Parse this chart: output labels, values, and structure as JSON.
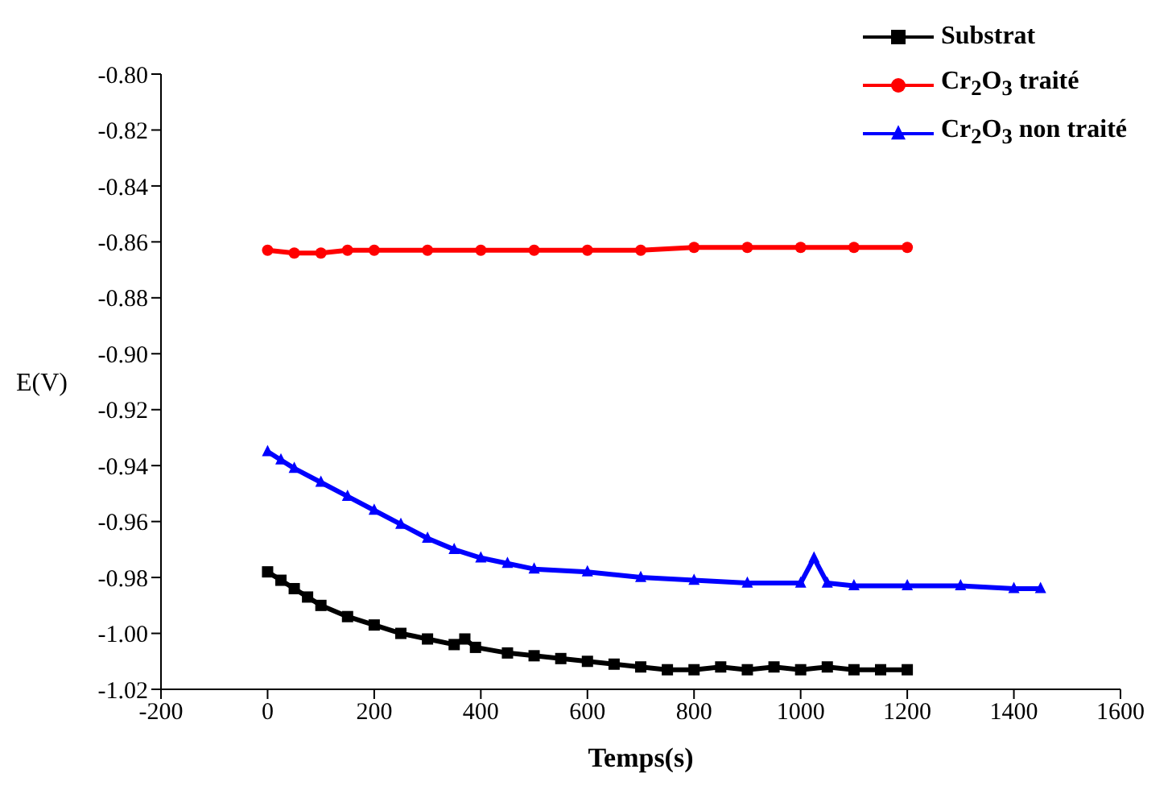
{
  "chart_data": {
    "type": "line",
    "xlabel": "Temps(s)",
    "ylabel": "E(V)",
    "xlim": [
      -200,
      1600
    ],
    "xticks": [
      -200,
      0,
      200,
      400,
      600,
      800,
      1000,
      1200,
      1400,
      1600
    ],
    "ylim": [
      -1.02,
      -0.8
    ],
    "yticks": [
      {
        "value": -1.02,
        "label": "-1.02"
      },
      {
        "value": -1.0,
        "label": "-1.00"
      },
      {
        "value": -0.98,
        "label": "-0.98"
      },
      {
        "value": -0.96,
        "label": "-0.96"
      },
      {
        "value": -0.94,
        "label": "-0.94"
      },
      {
        "value": -0.92,
        "label": "-0.92"
      },
      {
        "value": -0.9,
        "label": "-0.90"
      },
      {
        "value": -0.88,
        "label": "-0.88"
      },
      {
        "value": -0.86,
        "label": "-0.86"
      },
      {
        "value": -0.84,
        "label": "-0.84"
      },
      {
        "value": -0.82,
        "label": "-0.82"
      },
      {
        "value": -0.8,
        "label": "-0.80"
      }
    ],
    "grid": false,
    "legend": "top right",
    "series": [
      {
        "name": "Substrat",
        "color": "#000000",
        "marker": "square",
        "x": [
          0,
          25,
          50,
          75,
          100,
          150,
          200,
          250,
          300,
          350,
          370,
          390,
          450,
          500,
          550,
          600,
          650,
          700,
          750,
          800,
          850,
          900,
          950,
          1000,
          1050,
          1100,
          1150,
          1200
        ],
        "values": [
          -0.978,
          -0.981,
          -0.984,
          -0.987,
          -0.99,
          -0.994,
          -0.997,
          -1.0,
          -1.002,
          -1.004,
          -1.002,
          -1.005,
          -1.007,
          -1.008,
          -1.009,
          -1.01,
          -1.011,
          -1.012,
          -1.013,
          -1.013,
          -1.012,
          -1.013,
          -1.012,
          -1.013,
          -1.012,
          -1.013,
          -1.013,
          -1.013
        ]
      },
      {
        "name": "Cr$_{2}$O$_{3}$ traité",
        "color": "#ff0000",
        "marker": "circle",
        "x": [
          0,
          50,
          100,
          150,
          200,
          300,
          400,
          500,
          600,
          700,
          800,
          900,
          1000,
          1100,
          1200
        ],
        "values": [
          -0.863,
          -0.864,
          -0.864,
          -0.863,
          -0.863,
          -0.863,
          -0.863,
          -0.863,
          -0.863,
          -0.863,
          -0.862,
          -0.862,
          -0.862,
          -0.862,
          -0.862
        ]
      },
      {
        "name": "Cr$_{2}$O$_{3}$ non traité",
        "color": "#0000ff",
        "marker": "triangle",
        "x": [
          0,
          25,
          50,
          100,
          150,
          200,
          250,
          300,
          350,
          400,
          450,
          500,
          600,
          700,
          800,
          900,
          1000,
          1025,
          1050,
          1100,
          1200,
          1300,
          1400,
          1450
        ],
        "values": [
          -0.935,
          -0.938,
          -0.941,
          -0.946,
          -0.951,
          -0.956,
          -0.961,
          -0.966,
          -0.97,
          -0.973,
          -0.975,
          -0.977,
          -0.978,
          -0.98,
          -0.981,
          -0.982,
          -0.982,
          -0.973,
          -0.982,
          -0.983,
          -0.983,
          -0.983,
          -0.984,
          -0.984
        ]
      }
    ]
  }
}
